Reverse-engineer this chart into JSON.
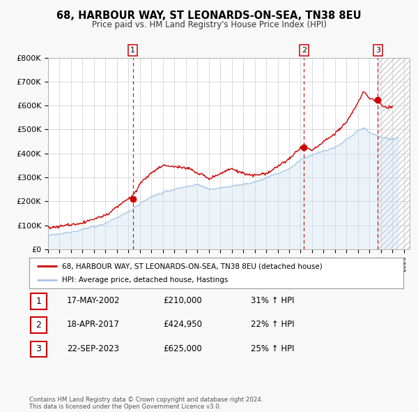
{
  "title": "68, HARBOUR WAY, ST LEONARDS-ON-SEA, TN38 8EU",
  "subtitle": "Price paid vs. HM Land Registry's House Price Index (HPI)",
  "hpi_color": "#a8c8e8",
  "hpi_fill_color": "#c8dff0",
  "price_color": "#cc0000",
  "sale_dot_color": "#cc0000",
  "vline_color": "#cc0000",
  "bg_color": "#f8f8f8",
  "plot_bg_color": "#ffffff",
  "grid_color": "#cccccc",
  "hatch_color": "#cccccc",
  "ylim": [
    0,
    800000
  ],
  "yticks": [
    0,
    100000,
    200000,
    300000,
    400000,
    500000,
    600000,
    700000,
    800000
  ],
  "ytick_labels": [
    "£0",
    "£100K",
    "£200K",
    "£300K",
    "£400K",
    "£500K",
    "£600K",
    "£700K",
    "£800K"
  ],
  "xmin": 1995.0,
  "xmax": 2026.5,
  "hatch_start": 2023.73,
  "sale_dates": [
    2002.38,
    2017.29,
    2023.73
  ],
  "sale_prices": [
    210000,
    424950,
    625000
  ],
  "sale_labels": [
    "1",
    "2",
    "3"
  ],
  "legend_entries": [
    "68, HARBOUR WAY, ST LEONARDS-ON-SEA, TN38 8EU (detached house)",
    "HPI: Average price, detached house, Hastings"
  ],
  "table_rows": [
    [
      "1",
      "17-MAY-2002",
      "£210,000",
      "31% ↑ HPI"
    ],
    [
      "2",
      "18-APR-2017",
      "£424,950",
      "22% ↑ HPI"
    ],
    [
      "3",
      "22-SEP-2023",
      "£625,000",
      "25% ↑ HPI"
    ]
  ],
  "footer_line1": "Contains HM Land Registry data © Crown copyright and database right 2024.",
  "footer_line2": "This data is licensed under the Open Government Licence v3.0."
}
